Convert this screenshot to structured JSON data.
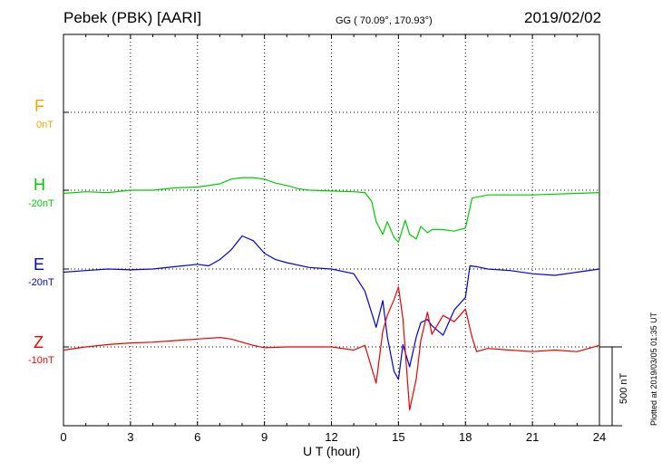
{
  "header": {
    "title": "Pebek (PBK)  [AARI]",
    "coordinates": "GG ( 70.09°, 170.93°)",
    "date": "2019/02/02"
  },
  "components": [
    {
      "letter": "F",
      "baseline": "0nT",
      "color": "#f5a500"
    },
    {
      "letter": "H",
      "baseline": "-20nT",
      "color": "#00cc00"
    },
    {
      "letter": "E",
      "baseline": "-20nT",
      "color": "#0000dd"
    },
    {
      "letter": "Z",
      "baseline": "-10nT",
      "color": "#ee0000"
    }
  ],
  "axis": {
    "xlabel": "U T (hour)",
    "ticks": [
      "0",
      "3",
      "6",
      "9",
      "12",
      "15",
      "18",
      "21",
      "24"
    ]
  },
  "scale_bar": {
    "label": "500 nT"
  },
  "footer": {
    "plotted": "Plotted at 2019/03/05 01:35 UT"
  },
  "chart_data": {
    "type": "line",
    "xlabel": "U T (hour)",
    "xlim": [
      0,
      24
    ],
    "x_ticks": [
      0,
      3,
      6,
      9,
      12,
      15,
      18,
      21,
      24
    ],
    "grid": true,
    "units": "nT",
    "scale_bar_nT": 500,
    "series": [
      {
        "name": "H",
        "color": "#00cc00",
        "x": [
          0,
          1,
          2,
          3,
          4,
          5,
          6,
          7,
          7.5,
          8,
          8.5,
          9,
          9.5,
          10,
          10.5,
          11,
          12,
          13,
          13.5,
          13.8,
          14,
          14.3,
          14.5,
          14.8,
          15,
          15.3,
          15.5,
          15.8,
          16,
          16.3,
          16.5,
          17,
          17.5,
          18,
          18.3,
          19,
          20,
          21,
          22,
          23,
          24
        ],
        "y": [
          -20,
          -10,
          -15,
          0,
          0,
          15,
          20,
          40,
          70,
          80,
          80,
          70,
          45,
          30,
          10,
          0,
          -5,
          -10,
          -15,
          -70,
          -200,
          -280,
          -200,
          -300,
          -330,
          -190,
          -280,
          -310,
          -230,
          -270,
          -250,
          -250,
          -260,
          -240,
          -50,
          -30,
          -30,
          -30,
          -25,
          -20,
          -15
        ]
      },
      {
        "name": "E",
        "color": "#0000dd",
        "x": [
          0,
          1,
          2,
          3,
          4,
          5,
          6,
          6.5,
          7,
          7.5,
          8,
          8.5,
          9,
          9.5,
          10,
          11,
          12,
          12.5,
          13,
          13.5,
          14,
          14.3,
          14.5,
          14.8,
          15,
          15.2,
          15.5,
          15.8,
          16,
          16.3,
          16.5,
          17,
          17.5,
          18,
          18.2,
          18.5,
          19,
          20,
          21,
          22,
          23,
          24
        ],
        "y": [
          -20,
          -10,
          0,
          -5,
          0,
          15,
          30,
          20,
          60,
          120,
          210,
          180,
          100,
          60,
          40,
          10,
          0,
          -15,
          -30,
          -140,
          -370,
          -200,
          -430,
          -650,
          -700,
          -480,
          -620,
          -430,
          -340,
          -320,
          -360,
          -420,
          -260,
          -180,
          20,
          15,
          0,
          -10,
          -30,
          -40,
          -20,
          0
        ]
      },
      {
        "name": "Z",
        "color": "#ee0000",
        "x": [
          0,
          1,
          2,
          3,
          4,
          5,
          6,
          7,
          7.5,
          8,
          8.5,
          9,
          10,
          11,
          12,
          13,
          13.5,
          14,
          14.3,
          14.5,
          14.8,
          15,
          15.2,
          15.5,
          15.8,
          16,
          16.3,
          16.5,
          17,
          17.5,
          18,
          18.3,
          18.5,
          19,
          20,
          21,
          22,
          23,
          24
        ],
        "y": [
          -20,
          0,
          15,
          25,
          30,
          40,
          50,
          60,
          50,
          30,
          10,
          -5,
          0,
          0,
          0,
          -20,
          10,
          -230,
          100,
          200,
          300,
          380,
          180,
          -400,
          -200,
          40,
          220,
          80,
          200,
          160,
          240,
          60,
          -30,
          -10,
          -20,
          -30,
          -20,
          -30,
          10
        ]
      },
      {
        "name": "F",
        "color": "#f5a500",
        "x": [],
        "y": []
      }
    ]
  }
}
